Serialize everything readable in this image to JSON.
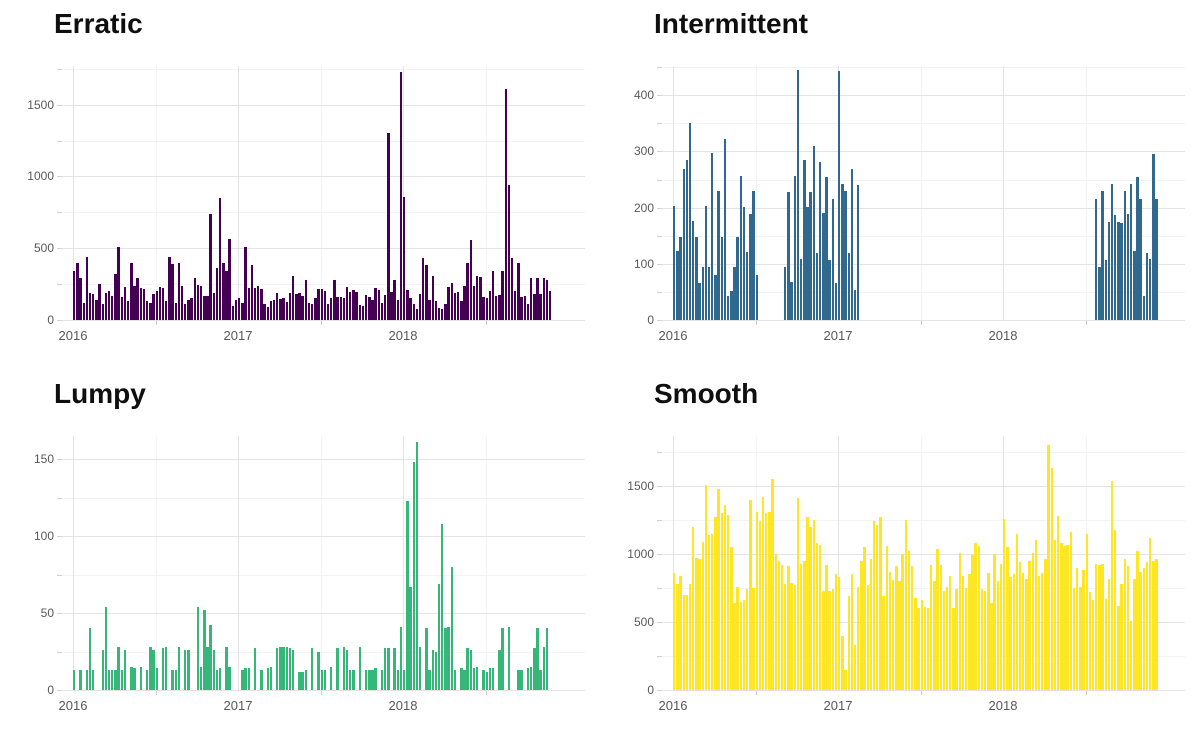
{
  "page": {
    "background": "#ffffff",
    "description_layout": "2x2 grid of weekly demand bar charts",
    "grid_order": [
      "Erratic",
      "Intermittent",
      "Lumpy",
      "Smooth"
    ]
  },
  "chart_data": [
    {
      "type": "bar",
      "title": "Erratic",
      "color": "#440154",
      "frequency": "weekly",
      "x_start_year": 2016,
      "x_tick_labels": [
        "2016",
        "2017",
        "2018"
      ],
      "x_range": [
        2016.0,
        2019.0
      ],
      "y_ticks": [
        0,
        500,
        1000,
        1500
      ],
      "ylim": [
        0,
        1770
      ],
      "grid": true,
      "legend": "none",
      "values": [
        340,
        400,
        290,
        120,
        440,
        190,
        180,
        140,
        250,
        110,
        190,
        200,
        170,
        320,
        510,
        160,
        230,
        130,
        395,
        240,
        290,
        220,
        215,
        130,
        120,
        180,
        200,
        230,
        225,
        135,
        440,
        390,
        120,
        395,
        240,
        110,
        140,
        150,
        290,
        245,
        240,
        165,
        170,
        740,
        185,
        360,
        850,
        395,
        340,
        565,
        100,
        140,
        155,
        120,
        510,
        225,
        385,
        220,
        240,
        215,
        110,
        90,
        135,
        140,
        190,
        145,
        150,
        125,
        190,
        310,
        180,
        190,
        170,
        280,
        120,
        115,
        150,
        215,
        215,
        205,
        110,
        150,
        280,
        160,
        160,
        150,
        230,
        195,
        210,
        195,
        105,
        95,
        175,
        160,
        140,
        220,
        210,
        120,
        175,
        1300,
        195,
        280,
        140,
        1730,
        860,
        210,
        150,
        115,
        75,
        180,
        430,
        385,
        140,
        305,
        135,
        85,
        75,
        115,
        230,
        260,
        190,
        195,
        130,
        240,
        400,
        560,
        240,
        310,
        300,
        160,
        155,
        200,
        340,
        165,
        175,
        345,
        1610,
        940,
        430,
        205,
        400,
        160,
        170,
        110,
        290,
        180,
        290,
        180,
        290,
        280,
        200
      ]
    },
    {
      "type": "bar",
      "title": "Intermittent",
      "color": "#31688e",
      "frequency": "weekly",
      "x_start_year": 2016,
      "x_tick_labels": [
        "2016",
        "2017",
        "2018"
      ],
      "x_range": [
        2016.0,
        2019.0
      ],
      "y_ticks": [
        0,
        100,
        200,
        300,
        400
      ],
      "ylim": [
        0,
        452
      ],
      "grid": true,
      "legend": "none",
      "values": [
        203,
        122,
        147,
        268,
        285,
        350,
        176,
        148,
        66,
        95,
        203,
        95,
        297,
        80,
        230,
        148,
        322,
        42,
        52,
        94,
        148,
        257,
        202,
        121,
        188,
        230,
        80,
        0,
        0,
        0,
        0,
        0,
        0,
        0,
        0,
        95,
        228,
        68,
        257,
        445,
        108,
        284,
        202,
        228,
        310,
        120,
        282,
        190,
        255,
        106,
        215,
        65,
        443,
        242,
        230,
        120,
        268,
        54,
        241,
        0,
        0,
        0,
        0,
        0,
        0,
        0,
        0,
        0,
        0,
        0,
        0,
        0,
        0,
        0,
        0,
        0,
        0,
        0,
        0,
        0,
        0,
        0,
        0,
        0,
        0,
        0,
        0,
        0,
        0,
        0,
        0,
        0,
        0,
        0,
        0,
        0,
        0,
        0,
        0,
        0,
        0,
        0,
        0,
        0,
        0,
        0,
        0,
        0,
        0,
        0,
        0,
        0,
        0,
        0,
        0,
        0,
        0,
        0,
        0,
        0,
        0,
        0,
        0,
        0,
        0,
        0,
        0,
        0,
        0,
        0,
        0,
        0,
        0,
        216,
        94,
        230,
        107,
        175,
        242,
        186,
        174,
        172,
        229,
        188,
        242,
        122,
        255,
        216,
        42,
        120,
        108,
        295,
        216
      ]
    },
    {
      "type": "bar",
      "title": "Lumpy",
      "color": "#35b779",
      "frequency": "weekly",
      "x_start_year": 2016,
      "x_tick_labels": [
        "2016",
        "2017",
        "2018"
      ],
      "x_range": [
        2016.0,
        2019.0
      ],
      "y_ticks": [
        0,
        50,
        100,
        150
      ],
      "ylim": [
        0,
        165
      ],
      "grid": true,
      "legend": "none",
      "values": [
        13,
        0,
        13,
        0,
        13,
        40,
        13,
        0,
        0,
        26,
        54,
        13,
        13,
        13,
        28,
        13,
        26,
        0,
        15,
        14,
        0,
        15,
        0,
        13,
        28,
        26,
        14,
        0,
        27,
        28,
        0,
        13,
        13,
        28,
        0,
        26,
        26,
        0,
        0,
        54,
        15,
        52,
        28,
        42,
        26,
        13,
        14,
        0,
        28,
        15,
        0,
        0,
        0,
        13,
        14,
        14,
        0,
        27,
        0,
        13,
        0,
        14,
        15,
        0,
        27,
        28,
        28,
        28,
        27,
        26,
        0,
        12,
        12,
        13,
        0,
        27,
        0,
        25,
        13,
        13,
        0,
        15,
        0,
        27,
        0,
        28,
        26,
        13,
        13,
        0,
        28,
        0,
        13,
        13,
        13,
        14,
        0,
        13,
        27,
        27,
        0,
        27,
        13,
        41,
        13,
        123,
        67,
        148,
        161,
        28,
        0,
        40,
        13,
        26,
        25,
        69,
        108,
        40,
        41,
        80,
        13,
        0,
        14,
        13,
        27,
        26,
        14,
        15,
        0,
        13,
        12,
        14,
        14,
        0,
        26,
        40,
        0,
        41,
        0,
        0,
        13,
        13,
        0,
        14,
        15,
        27,
        40,
        13,
        28,
        40,
        0
      ]
    },
    {
      "type": "bar",
      "title": "Smooth",
      "color": "#fde725",
      "frequency": "weekly",
      "x_start_year": 2016,
      "x_tick_labels": [
        "2016",
        "2017",
        "2018"
      ],
      "x_range": [
        2016.0,
        2019.0
      ],
      "y_ticks": [
        0,
        500,
        1000,
        1500
      ],
      "ylim": [
        0,
        1868
      ],
      "grid": true,
      "legend": "none",
      "values": [
        860,
        780,
        840,
        700,
        700,
        780,
        1200,
        970,
        960,
        1090,
        1510,
        1140,
        1150,
        1270,
        1475,
        1300,
        1360,
        1290,
        1050,
        640,
        760,
        650,
        660,
        740,
        1400,
        750,
        1310,
        1240,
        1420,
        1300,
        1310,
        1550,
        1000,
        950,
        920,
        780,
        910,
        790,
        770,
        1410,
        930,
        950,
        1270,
        1200,
        1250,
        1080,
        1070,
        730,
        920,
        730,
        740,
        850,
        830,
        400,
        150,
        690,
        850,
        330,
        760,
        950,
        1050,
        770,
        960,
        1240,
        1210,
        1270,
        690,
        1060,
        870,
        810,
        910,
        800,
        1000,
        1250,
        1020,
        910,
        680,
        600,
        660,
        610,
        600,
        920,
        800,
        1040,
        920,
        730,
        760,
        840,
        600,
        740,
        1010,
        840,
        750,
        850,
        990,
        1080,
        1060,
        740,
        730,
        860,
        640,
        1000,
        800,
        930,
        1260,
        1050,
        830,
        850,
        1150,
        940,
        860,
        820,
        950,
        1010,
        1100,
        840,
        860,
        960,
        1800,
        1630,
        1100,
        1280,
        1080,
        1060,
        1070,
        1160,
        750,
        900,
        760,
        880,
        1150,
        720,
        660,
        930,
        920,
        930,
        670,
        820,
        1540,
        1180,
        620,
        780,
        960,
        910,
        510,
        820,
        1020,
        870,
        900,
        940,
        1120,
        950,
        960
      ]
    }
  ]
}
